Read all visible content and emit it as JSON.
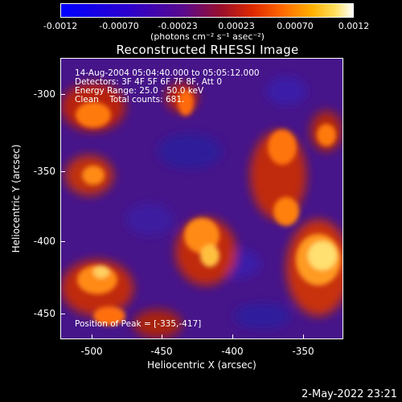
{
  "colorbar": {
    "ticks": [
      "-0.0012",
      "-0.00070",
      "-0.00023",
      "0.00023",
      "0.00070",
      "0.0012"
    ],
    "unit_label": "(photons cm⁻² s⁻¹ asec⁻²)"
  },
  "title": "Reconstructed RHESSI Image",
  "info": {
    "line1": "14-Aug-2004 05:04:40.000 to 05:05:12.000",
    "line2": "Detectors: 3F 4F 5F 6F 7F 8F, Att 0",
    "line3": "Energy Range: 25.0 - 50.0 keV",
    "line4": "Clean    Total counts: 681."
  },
  "peak": "Position of Peak = [-335,-417]",
  "y_axis": {
    "label": "Heliocentric Y (arcsec)",
    "ticks": [
      "-300",
      "-350",
      "-400",
      "-450"
    ]
  },
  "x_axis": {
    "label": "Heliocentric X (arcsec)",
    "ticks": [
      "-500",
      "-450",
      "-400",
      "-350"
    ]
  },
  "timestamp": "2-May-2022 23:21",
  "colors": {
    "background": "#000000",
    "text": "#ffffff"
  }
}
